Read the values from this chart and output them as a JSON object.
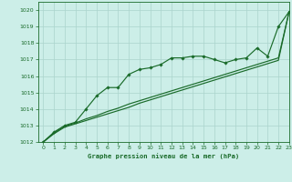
{
  "title": "Graphe pression niveau de la mer (hPa)",
  "background_color": "#cceee8",
  "grid_color": "#aad4cc",
  "line_color": "#1a6b2a",
  "xlim": [
    -0.5,
    23
  ],
  "ylim": [
    1012,
    1020.5
  ],
  "yticks": [
    1012,
    1013,
    1014,
    1015,
    1016,
    1017,
    1018,
    1019,
    1020
  ],
  "xticks": [
    0,
    1,
    2,
    3,
    4,
    5,
    6,
    7,
    8,
    9,
    10,
    11,
    12,
    13,
    14,
    15,
    16,
    17,
    18,
    19,
    20,
    21,
    22,
    23
  ],
  "series_zigzag": [
    1012.0,
    1012.6,
    1013.0,
    1013.2,
    1014.0,
    1014.8,
    1015.3,
    1015.3,
    1016.1,
    1016.4,
    1016.5,
    1016.7,
    1017.1,
    1017.1,
    1017.2,
    1017.2,
    1017.0,
    1016.8,
    1017.0,
    1017.1,
    1017.7,
    1017.2,
    1019.0,
    1019.9
  ],
  "series_low": [
    1012.0,
    1012.5,
    1012.9,
    1013.1,
    1013.3,
    1013.5,
    1013.7,
    1013.9,
    1014.1,
    1014.35,
    1014.55,
    1014.75,
    1014.95,
    1015.15,
    1015.35,
    1015.55,
    1015.75,
    1015.95,
    1016.15,
    1016.35,
    1016.55,
    1016.75,
    1016.95,
    1019.9
  ],
  "series_high": [
    1012.0,
    1012.55,
    1012.95,
    1013.15,
    1013.4,
    1013.6,
    1013.85,
    1014.05,
    1014.3,
    1014.5,
    1014.7,
    1014.9,
    1015.1,
    1015.3,
    1015.5,
    1015.7,
    1015.9,
    1016.1,
    1016.3,
    1016.5,
    1016.7,
    1016.9,
    1017.1,
    1019.9
  ]
}
